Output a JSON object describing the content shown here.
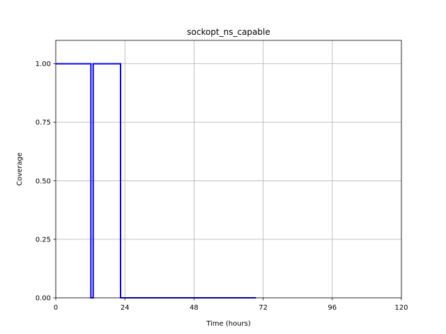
{
  "chart_data": {
    "type": "line",
    "title": "sockopt_ns_capable",
    "xlabel": "Time (hours)",
    "ylabel": "Coverage",
    "xlim": [
      0,
      120
    ],
    "ylim": [
      0,
      1.1
    ],
    "xticks": [
      0,
      24,
      48,
      72,
      96,
      120
    ],
    "xtick_labels": [
      "0",
      "24",
      "48",
      "72",
      "96",
      "120"
    ],
    "yticks": [
      0,
      0.25,
      0.5,
      0.75,
      1.0
    ],
    "ytick_labels": [
      "0.00",
      "0.25",
      "0.50",
      "0.75",
      "1.00"
    ],
    "grid": true,
    "series": [
      {
        "color": "#0000ff",
        "x": [
          0,
          12.2,
          12.2,
          13.0,
          13.0,
          22.5,
          22.5,
          69.5
        ],
        "y": [
          1.0,
          1.0,
          0.0,
          0.0,
          1.0,
          1.0,
          0.0,
          0.0
        ]
      }
    ]
  }
}
